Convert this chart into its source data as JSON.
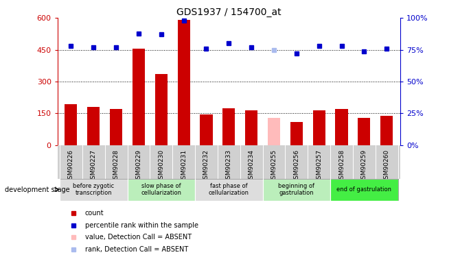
{
  "title": "GDS1937 / 154700_at",
  "samples": [
    "GSM90226",
    "GSM90227",
    "GSM90228",
    "GSM90229",
    "GSM90230",
    "GSM90231",
    "GSM90232",
    "GSM90233",
    "GSM90234",
    "GSM90255",
    "GSM90256",
    "GSM90257",
    "GSM90258",
    "GSM90259",
    "GSM90260"
  ],
  "counts": [
    195,
    180,
    170,
    455,
    335,
    590,
    145,
    175,
    165,
    130,
    110,
    165,
    170,
    130,
    140
  ],
  "absent_count_idx": 9,
  "absent_count_val": 130,
  "percentile_ranks": [
    78,
    77,
    77,
    88,
    87,
    98,
    76,
    80,
    77,
    75,
    72,
    78,
    78,
    74,
    76
  ],
  "absent_rank_idx": 9,
  "absent_rank_val": 75,
  "ylim_left": [
    0,
    600
  ],
  "ylim_right": [
    0,
    100
  ],
  "yticks_left": [
    0,
    150,
    300,
    450,
    600
  ],
  "yticks_right": [
    0,
    25,
    50,
    75,
    100
  ],
  "stage_groups": [
    {
      "label": "before zygotic\ntranscription",
      "start": 0,
      "end": 3,
      "color": "#dddddd"
    },
    {
      "label": "slow phase of\ncellularization",
      "start": 3,
      "end": 6,
      "color": "#bbeebb"
    },
    {
      "label": "fast phase of\ncellularization",
      "start": 6,
      "end": 9,
      "color": "#dddddd"
    },
    {
      "label": "beginning of\ngastrulation",
      "start": 9,
      "end": 12,
      "color": "#bbeebb"
    },
    {
      "label": "end of gastrulation",
      "start": 12,
      "end": 15,
      "color": "#44ee44"
    }
  ],
  "xtick_bg_color": "#d0d0d0",
  "bar_color": "#cc0000",
  "absent_bar_color": "#ffbbbb",
  "rank_color": "#0000cc",
  "absent_rank_color": "#aabbee",
  "tick_color_left": "#cc0000",
  "tick_color_right": "#0000cc",
  "dev_stage_label": "development stage",
  "legend_items": [
    {
      "color": "#cc0000",
      "label": "count"
    },
    {
      "color": "#0000cc",
      "label": "percentile rank within the sample"
    },
    {
      "color": "#ffbbbb",
      "label": "value, Detection Call = ABSENT"
    },
    {
      "color": "#aabbee",
      "label": "rank, Detection Call = ABSENT"
    }
  ]
}
